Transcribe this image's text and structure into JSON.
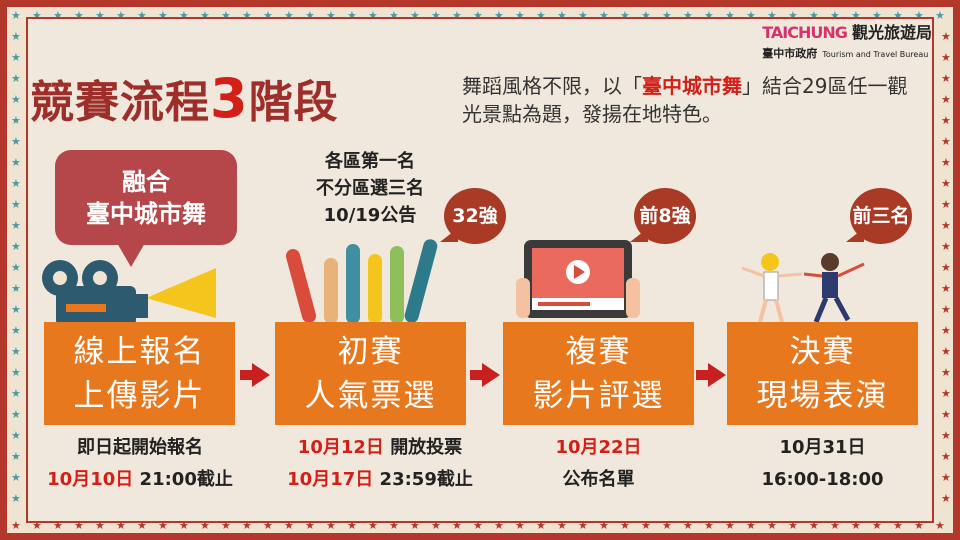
{
  "logo": {
    "brand_en": "TAICHUNG",
    "brand_zh": "觀光旅遊局",
    "gov": "臺中市政府",
    "bureau_en": "Tourism and Travel Bureau"
  },
  "title": {
    "prefix": "競賽流程",
    "number": "3",
    "suffix": "階段"
  },
  "intro": {
    "part1": "舞蹈風格不限，以「",
    "highlight": "臺中城市舞",
    "part2": "」結合29區任一觀光景點為題，發揚在地特色。"
  },
  "bubble": {
    "line1": "融合",
    "line2": "臺中城市舞"
  },
  "round1_note": {
    "line1": "各區第一名",
    "line2": "不分區選三名",
    "line3": "10/19公告"
  },
  "stages": [
    {
      "line1": "線上報名",
      "line2": "上傳影片",
      "d1a": "",
      "d1b": "即日起開始報名",
      "d2a": "10月10日",
      "d2b": "21:00截止"
    },
    {
      "line1": "初賽",
      "line2": "人氣票選",
      "badge": "32強",
      "d1a": "10月12日",
      "d1b": "開放投票",
      "d2a": "10月17日",
      "d2b": "23:59截止"
    },
    {
      "line1": "複賽",
      "line2": "影片評選",
      "badge": "前8強",
      "d1a": "10月22日",
      "d1b": "",
      "d2a": "",
      "d2b": "公布名單"
    },
    {
      "line1": "決賽",
      "line2": "現場表演",
      "badge": "前三名",
      "d1a": "",
      "d1b": "10月31日",
      "d2a": "",
      "d2b": "16:00-18:00"
    }
  ],
  "colors": {
    "frame": "#b3372a",
    "background": "#f0e8dc",
    "stage_box": "#e8781e",
    "accent_red": "#d22019",
    "badge": "#a83a26",
    "bubble": "#b5474a",
    "star_teal": "#4a9aa8"
  }
}
